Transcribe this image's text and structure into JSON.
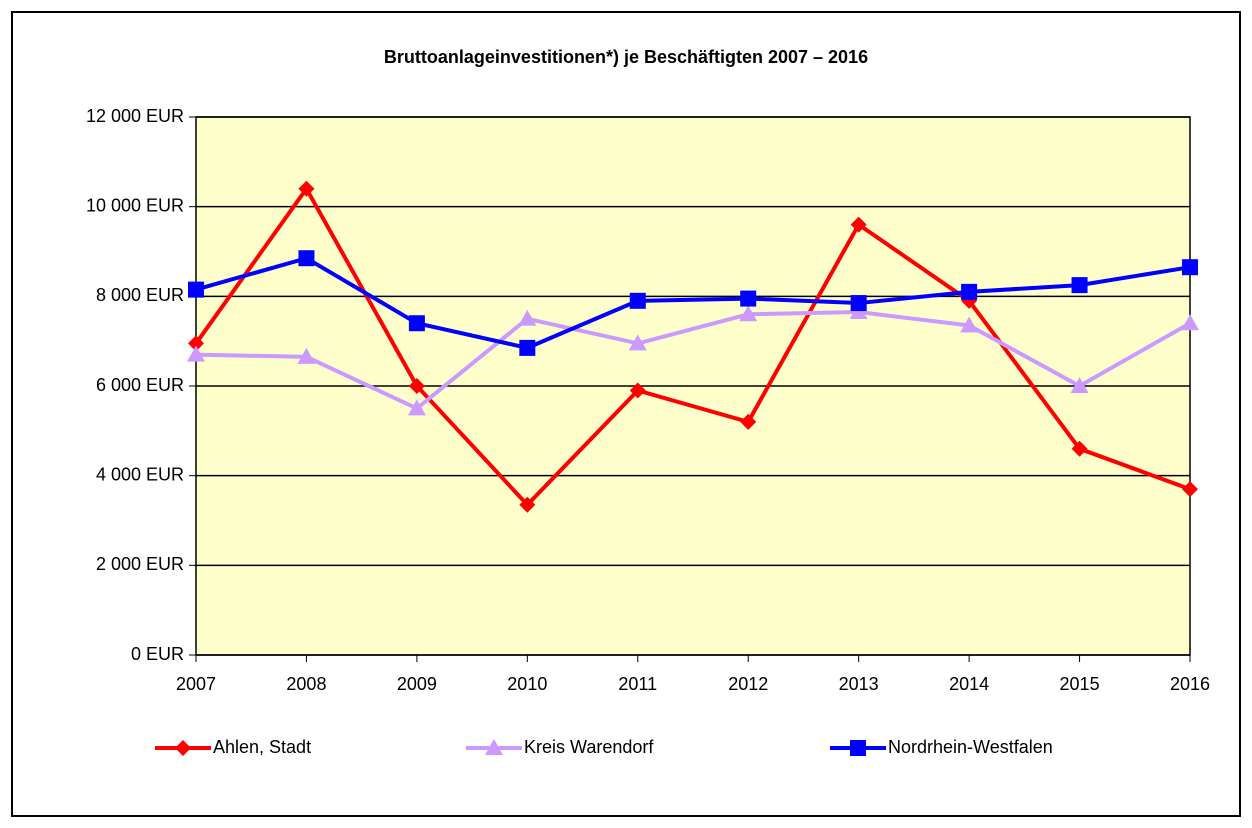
{
  "chart_data": {
    "type": "line",
    "title": "Bruttoanlageinvestitionen*) je Beschäftigten 2007 – 2016",
    "categories": [
      "2007",
      "2008",
      "2009",
      "2010",
      "2011",
      "2012",
      "2013",
      "2014",
      "2015",
      "2016"
    ],
    "series": [
      {
        "name": "Ahlen, Stadt",
        "color": "#ff0000",
        "marker": "diamond",
        "values": [
          6950,
          10400,
          6000,
          3350,
          5900,
          5200,
          9600,
          7900,
          4600,
          3700
        ]
      },
      {
        "name": "Kreis Warendorf",
        "color": "#cc99ff",
        "marker": "triangle",
        "values": [
          6700,
          6650,
          5500,
          7500,
          6950,
          7600,
          7650,
          7350,
          6000,
          7400
        ]
      },
      {
        "name": "Nordrhein-Westfalen",
        "color": "#0000ff",
        "marker": "square",
        "values": [
          8150,
          8850,
          7400,
          6850,
          7900,
          7950,
          7850,
          8100,
          8250,
          8650
        ]
      }
    ],
    "ylim": [
      0,
      12000
    ],
    "yticks": [
      {
        "value": 0,
        "label": "0 EUR"
      },
      {
        "value": 2000,
        "label": "2 000 EUR"
      },
      {
        "value": 4000,
        "label": "4 000 EUR"
      },
      {
        "value": 6000,
        "label": "6 000 EUR"
      },
      {
        "value": 8000,
        "label": "8 000 EUR"
      },
      {
        "value": 10000,
        "label": "10 000 EUR"
      },
      {
        "value": 12000,
        "label": "12 000 EUR"
      }
    ],
    "grid": true,
    "plot_background": "#ffffcc",
    "legend": "bottom"
  }
}
